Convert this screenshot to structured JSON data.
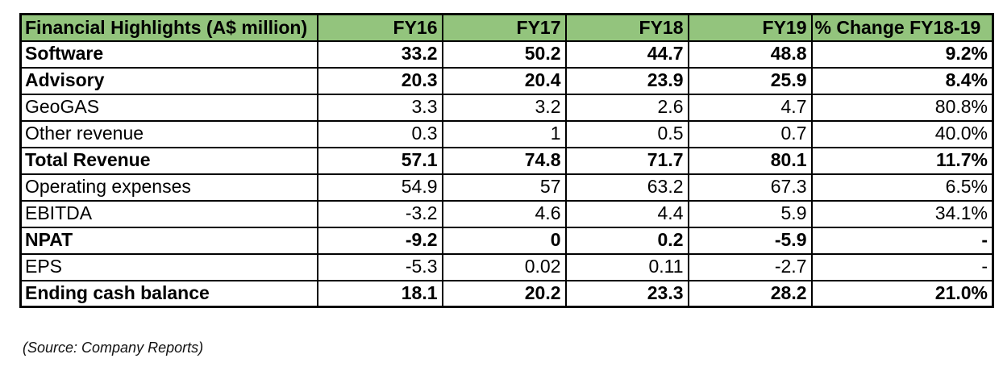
{
  "colors": {
    "header_bg": "#93C47D",
    "border": "#000000",
    "text": "#000000",
    "page_bg": "#FFFFFF"
  },
  "table": {
    "header": [
      "Financial Highlights (A$ million)",
      "FY16",
      "FY17",
      "FY18",
      "FY19",
      "% Change FY18-19"
    ],
    "rows": [
      {
        "label": "Software",
        "bold": true,
        "values": [
          "33.2",
          "50.2",
          "44.7",
          "48.8",
          "9.2%"
        ]
      },
      {
        "label": "Advisory",
        "bold": true,
        "values": [
          "20.3",
          "20.4",
          "23.9",
          "25.9",
          "8.4%"
        ]
      },
      {
        "label": "GeoGAS",
        "bold": false,
        "values": [
          "3.3",
          "3.2",
          "2.6",
          "4.7",
          "80.8%"
        ]
      },
      {
        "label": "Other revenue",
        "bold": false,
        "values": [
          "0.3",
          "1",
          "0.5",
          "0.7",
          "40.0%"
        ]
      },
      {
        "label": "Total Revenue",
        "bold": true,
        "values": [
          "57.1",
          "74.8",
          "71.7",
          "80.1",
          "11.7%"
        ]
      },
      {
        "label": "Operating expenses",
        "bold": false,
        "values": [
          "54.9",
          "57",
          "63.2",
          "67.3",
          "6.5%"
        ]
      },
      {
        "label": "EBITDA",
        "bold": false,
        "values": [
          "-3.2",
          "4.6",
          "4.4",
          "5.9",
          "34.1%"
        ]
      },
      {
        "label": "NPAT",
        "bold": true,
        "values": [
          "-9.2",
          "0",
          "0.2",
          "-5.9",
          "-"
        ]
      },
      {
        "label": "EPS",
        "bold": false,
        "values": [
          "-5.3",
          "0.02",
          "0.11",
          "-2.7",
          "-"
        ]
      },
      {
        "label": "Ending cash balance",
        "bold": true,
        "values": [
          "18.1",
          "20.2",
          "23.3",
          "28.2",
          "21.0%"
        ]
      }
    ]
  },
  "source_note": "(Source: Company Reports)",
  "chart_data": {
    "type": "table",
    "title": "Financial Highlights (A$ million)",
    "columns": [
      "Financial Highlights (A$ million)",
      "FY16",
      "FY17",
      "FY18",
      "FY19",
      "% Change FY18-19"
    ],
    "rows": [
      [
        "Software",
        33.2,
        50.2,
        44.7,
        48.8,
        "9.2%"
      ],
      [
        "Advisory",
        20.3,
        20.4,
        23.9,
        25.9,
        "8.4%"
      ],
      [
        "GeoGAS",
        3.3,
        3.2,
        2.6,
        4.7,
        "80.8%"
      ],
      [
        "Other revenue",
        0.3,
        1,
        0.5,
        0.7,
        "40.0%"
      ],
      [
        "Total Revenue",
        57.1,
        74.8,
        71.7,
        80.1,
        "11.7%"
      ],
      [
        "Operating expenses",
        54.9,
        57,
        63.2,
        67.3,
        "6.5%"
      ],
      [
        "EBITDA",
        -3.2,
        4.6,
        4.4,
        5.9,
        "34.1%"
      ],
      [
        "NPAT",
        -9.2,
        0,
        0.2,
        -5.9,
        "-"
      ],
      [
        "EPS",
        -5.3,
        0.02,
        0.11,
        -2.7,
        "-"
      ],
      [
        "Ending cash balance",
        18.1,
        20.2,
        23.3,
        28.2,
        "21.0%"
      ]
    ],
    "annotations": [
      "(Source: Company Reports)"
    ],
    "layout": {
      "header_fill": "#93C47D",
      "grid": true,
      "bold_rows": [
        "Software",
        "Advisory",
        "Total Revenue",
        "NPAT",
        "Ending cash balance"
      ]
    }
  }
}
